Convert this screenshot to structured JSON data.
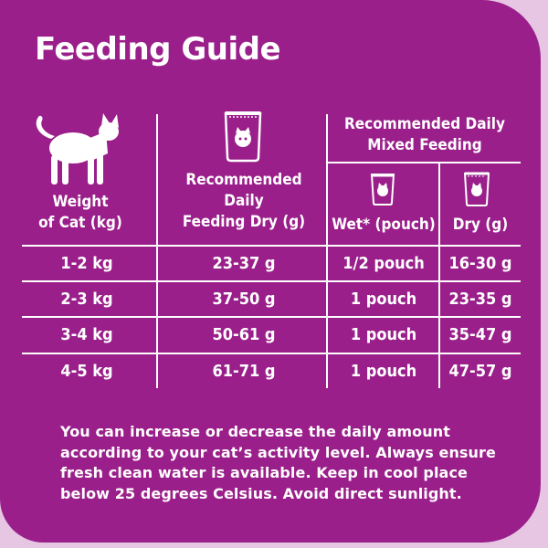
{
  "title": "Feeding Guide",
  "headers": {
    "weight": [
      "Weight",
      "of Cat (kg)"
    ],
    "dry": [
      "Recommended",
      "Daily",
      "Feeding Dry (g)"
    ],
    "mixed": [
      "Recommended Daily",
      "Mixed Feeding"
    ],
    "wet_sub": "Wet* (pouch)",
    "dry_sub": "Dry (g)"
  },
  "rows": [
    {
      "weight": "1-2 kg",
      "dry": "23-37 g",
      "wet": "1/2 pouch",
      "mixed_dry": "16-30 g"
    },
    {
      "weight": "2-3 kg",
      "dry": "37-50 g",
      "wet": "1 pouch",
      "mixed_dry": "23-35 g"
    },
    {
      "weight": "3-4 kg",
      "dry": "50-61 g",
      "wet": "1 pouch",
      "mixed_dry": "35-47 g"
    },
    {
      "weight": "4-5 kg",
      "dry": "61-71 g",
      "wet": "1 pouch",
      "mixed_dry": "47-57 g"
    }
  ],
  "note": "You can increase or decrease the daily amount according to your cat’s activity level. Always ensure fresh clean water is available. Keep in cool place below 25 degrees Celsius. Avoid direct sunlight.",
  "colors": {
    "background": "#9a1f8a",
    "border": "#e6c6e3",
    "text": "#ffffff"
  },
  "icons": {
    "cat": "cat-silhouette-icon",
    "dry_bag": "food-bag-icon",
    "pouch": "pouch-icon"
  }
}
